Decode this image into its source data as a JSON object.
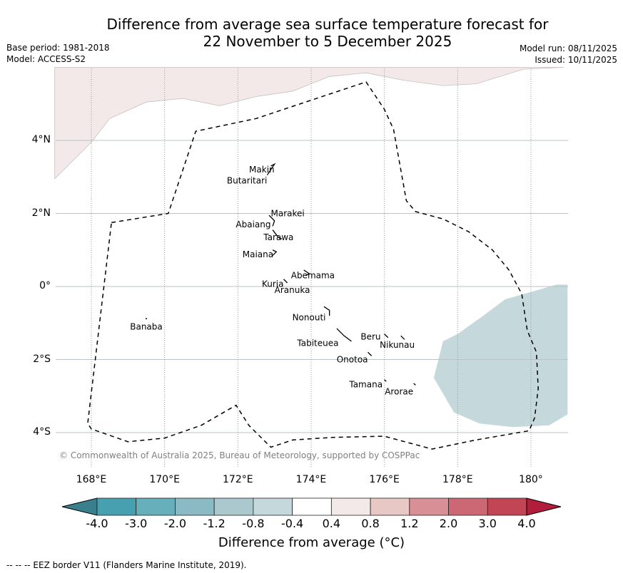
{
  "header": {
    "title_line1": "Difference from average sea surface temperature forecast for",
    "title_line2": "22 November to 5 December 2025",
    "base_period": "Base period: 1981-2018",
    "model": "Model: ACCESS-S2",
    "model_run": "Model run: 08/11/2025",
    "issued": "Issued: 10/11/2025"
  },
  "map": {
    "lon_range": [
      167,
      181
    ],
    "lat_range": [
      -5,
      6
    ],
    "lat_ticks": [
      {
        "value": 4,
        "label": "4°N"
      },
      {
        "value": 2,
        "label": "2°N"
      },
      {
        "value": 0,
        "label": "0°"
      },
      {
        "value": -2,
        "label": "2°S"
      },
      {
        "value": -4,
        "label": "4°S"
      }
    ],
    "lon_ticks": [
      {
        "value": 168,
        "label": "168°E"
      },
      {
        "value": 170,
        "label": "170°E"
      },
      {
        "value": 172,
        "label": "172°E"
      },
      {
        "value": 174,
        "label": "174°E"
      },
      {
        "value": 176,
        "label": "176°E"
      },
      {
        "value": 178,
        "label": "178°E"
      },
      {
        "value": 180,
        "label": "180°"
      }
    ],
    "places": [
      {
        "name": "Makin",
        "lon": 173.0,
        "lat": 3.2,
        "anchor": "end"
      },
      {
        "name": "Butaritari",
        "lon": 172.8,
        "lat": 2.9,
        "anchor": "end"
      },
      {
        "name": "Marakei",
        "lon": 172.9,
        "lat": 2.0,
        "anchor": "start"
      },
      {
        "name": "Abaiang",
        "lon": 172.9,
        "lat": 1.7,
        "anchor": "end"
      },
      {
        "name": "Tarawa",
        "lon": 172.7,
        "lat": 1.35,
        "anchor": "start"
      },
      {
        "name": "Maiana",
        "lon": 172.97,
        "lat": 0.88,
        "anchor": "end"
      },
      {
        "name": "Abemama",
        "lon": 173.45,
        "lat": 0.3,
        "anchor": "start"
      },
      {
        "name": "Kuria",
        "lon": 173.25,
        "lat": 0.07,
        "anchor": "end"
      },
      {
        "name": "Aranuka",
        "lon": 173.0,
        "lat": -0.1,
        "anchor": "start"
      },
      {
        "name": "Nonouti",
        "lon": 174.4,
        "lat": -0.85,
        "anchor": "end"
      },
      {
        "name": "Banaba",
        "lon": 169.5,
        "lat": -1.1,
        "anchor": "middle"
      },
      {
        "name": "Beru",
        "lon": 175.9,
        "lat": -1.38,
        "anchor": "end"
      },
      {
        "name": "Nikunau",
        "lon": 176.35,
        "lat": -1.6,
        "anchor": "middle"
      },
      {
        "name": "Tabiteuea",
        "lon": 174.75,
        "lat": -1.55,
        "anchor": "end"
      },
      {
        "name": "Onotoa",
        "lon": 175.55,
        "lat": -2.0,
        "anchor": "end"
      },
      {
        "name": "Tamana",
        "lon": 175.95,
        "lat": -2.68,
        "anchor": "end"
      },
      {
        "name": "Arorae",
        "lon": 176.4,
        "lat": -2.88,
        "anchor": "middle"
      }
    ],
    "copyright": "© Commonwealth of Australia 2025, Bureau of Meteorology, supported by COSPPac"
  },
  "anomaly_regions": [
    {
      "name": "warm-0.4-0.8",
      "color": "#f3e9e8",
      "category": "0.4 to 0.8"
    },
    {
      "name": "cool-0.8-0.4",
      "color": "#c5d8dc",
      "category": "-0.8 to -0.4"
    }
  ],
  "colorbar": {
    "label": "Difference from average (°C)",
    "ticks": [
      "-4.0",
      "-3.0",
      "-2.0",
      "-1.2",
      "-0.8",
      "-0.4",
      "0.4",
      "0.8",
      "1.2",
      "2.0",
      "3.0",
      "4.0"
    ],
    "under_color": "#3a7f8c",
    "over_color": "#b11d3a",
    "bins": [
      {
        "range": "-4.0 to -3.0",
        "color": "#46a0b0"
      },
      {
        "range": "-3.0 to -2.0",
        "color": "#67afbb"
      },
      {
        "range": "-2.0 to -1.2",
        "color": "#8bbac5"
      },
      {
        "range": "-1.2 to -0.8",
        "color": "#abc8ce"
      },
      {
        "range": "-0.8 to -0.4",
        "color": "#c5d8dc"
      },
      {
        "range": "-0.4 to 0.4",
        "color": "#ffffff"
      },
      {
        "range": "0.4 to 0.8",
        "color": "#f3e9e8"
      },
      {
        "range": "0.8 to 1.2",
        "color": "#e8c8c4"
      },
      {
        "range": "1.2 to 2.0",
        "color": "#d88f96"
      },
      {
        "range": "2.0 to 3.0",
        "color": "#cc6873"
      },
      {
        "range": "3.0 to 4.0",
        "color": "#c24556"
      }
    ]
  },
  "footer": {
    "eez_note": "--  --  -- EEZ border V11 (Flanders Marine Institute, 2019)."
  }
}
